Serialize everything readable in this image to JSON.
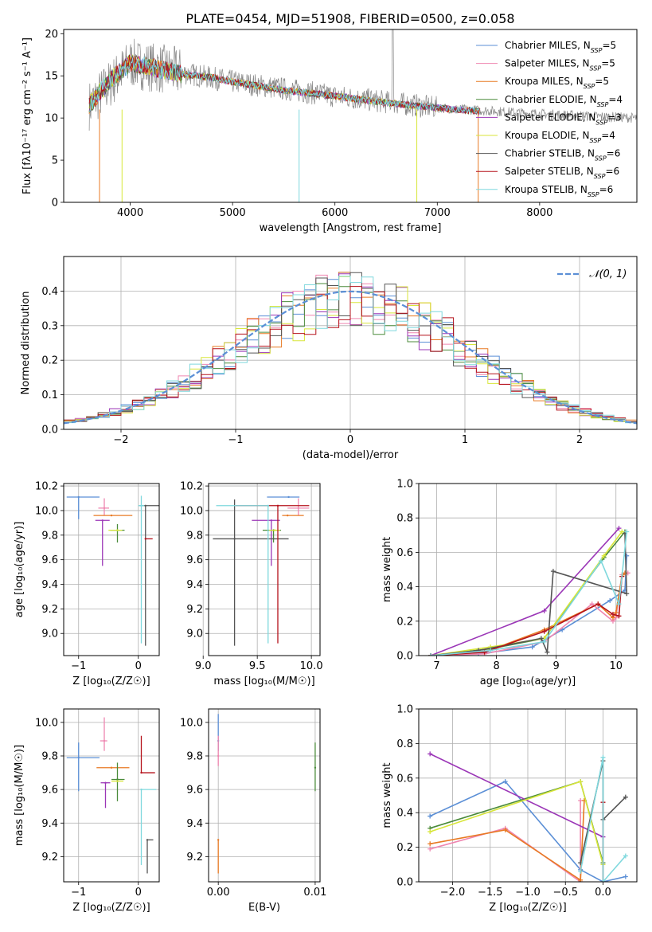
{
  "title": "PLATE=0454, MJD=51908, FIBERID=0500, z=0.058",
  "colors": [
    "#5b8fd6",
    "#ef86b0",
    "#e87a24",
    "#4b8b3b",
    "#9b36b7",
    "#d8e63a",
    "#555555",
    "#b5121b",
    "#7fd8dd"
  ],
  "chart_data": [
    {
      "id": "spectrum",
      "type": "line",
      "xlabel": "wavelength [Angstrom, rest frame]",
      "ylabel": "Flux [fλ10⁻¹⁷ erg cm⁻² s⁻¹ A⁻¹]",
      "xlim": [
        3350,
        8950
      ],
      "ylim": [
        0,
        20.5
      ],
      "xticks": [
        4000,
        5000,
        6000,
        7000,
        8000
      ],
      "yticks": [
        0,
        5,
        10,
        15,
        20
      ],
      "legend_loc": "upper right",
      "series": [
        {
          "name": "Chabrier MILES, N_SSP=5"
        },
        {
          "name": "Salpeter MILES, N_SSP=5"
        },
        {
          "name": "Kroupa MILES, N_SSP=5"
        },
        {
          "name": "Chabrier ELODIE, N_SSP=4"
        },
        {
          "name": "Salpeter ELODIE, N_SSP=3"
        },
        {
          "name": "Kroupa ELODIE, N_SSP=4"
        },
        {
          "name": "Chabrier STELIB, N_SSP=6"
        },
        {
          "name": "Salpeter STELIB, N_SSP=6"
        },
        {
          "name": "Kroupa STELIB, N_SSP=6"
        }
      ],
      "continuum": {
        "x": [
          3600,
          3800,
          4000,
          4200,
          4500,
          4800,
          5000,
          5500,
          6000,
          6500,
          7000,
          7400
        ],
        "y": [
          11.5,
          14.5,
          16.5,
          16.0,
          15.2,
          14.8,
          14.3,
          13.3,
          12.6,
          11.8,
          11.2,
          10.8
        ]
      },
      "data_continuum": {
        "x": [
          3600,
          4000,
          5000,
          6000,
          7000,
          8000,
          8950
        ],
        "y": [
          11.5,
          16.5,
          14.3,
          12.6,
          11.2,
          10.5,
          10.0
        ]
      }
    },
    {
      "id": "residuals",
      "type": "histogram",
      "xlabel": "(data-model)/error",
      "ylabel": "Normed distribution",
      "xlim": [
        -2.5,
        2.5
      ],
      "ylim": [
        0,
        0.5
      ],
      "xticks": [
        -2,
        -1,
        0,
        1,
        2
      ],
      "yticks": [
        0.0,
        0.1,
        0.2,
        0.3,
        0.4
      ],
      "legend": "𝒩(0, 1)",
      "reference": {
        "name": "N(0,1)",
        "mean": 0,
        "sd": 1
      }
    },
    {
      "id": "age-vs-Z",
      "type": "scatter",
      "xlabel": "Z [log₁₀(Z/Z☉)]",
      "ylabel": "age  [log₁₀(age/yr)]",
      "xlim": [
        -1.25,
        0.35
      ],
      "ylim": [
        8.82,
        10.22
      ],
      "xticks": [
        -1,
        0
      ],
      "yticks": [
        9.0,
        9.2,
        9.4,
        9.6,
        9.8,
        10.0,
        10.2
      ],
      "points": [
        {
          "x": -1.0,
          "y": 10.11,
          "xerr": [
            0.2,
            0.35
          ],
          "yerr": [
            0.18,
            0.0
          ]
        },
        {
          "x": -0.57,
          "y": 10.02,
          "xerr": [
            0.1,
            0.08
          ],
          "yerr": [
            0.06,
            0.08
          ]
        },
        {
          "x": -0.45,
          "y": 9.96,
          "xerr": [
            0.3,
            0.35
          ],
          "yerr": [
            0.0,
            0.0
          ]
        },
        {
          "x": -0.35,
          "y": 9.84,
          "xerr": [
            0.12,
            0.12
          ],
          "yerr": [
            0.1,
            0.05
          ]
        },
        {
          "x": -0.6,
          "y": 9.92,
          "xerr": [
            0.12,
            0.12
          ],
          "yerr": [
            0.37,
            0.0
          ]
        },
        {
          "x": -0.35,
          "y": 9.84,
          "xerr": [
            0.15,
            0.08
          ],
          "yerr": [
            0.0,
            0.0
          ]
        },
        {
          "x": 0.12,
          "y": 10.04,
          "xerr": [
            0.1,
            0.25
          ],
          "yerr": [
            1.14,
            0.0
          ]
        },
        {
          "x": 0.12,
          "y": 9.77,
          "xerr": [
            0.0,
            0.12
          ],
          "yerr": [
            0.0,
            0.0
          ]
        },
        {
          "x": 0.05,
          "y": 10.04,
          "xerr": [
            0.05,
            0.05
          ],
          "yerr": [
            1.12,
            0.08
          ]
        }
      ]
    },
    {
      "id": "age-vs-mass",
      "type": "scatter",
      "xlabel": "mass [log₁₀(M/M☉)]",
      "ylabel": "",
      "xlim": [
        9.05,
        10.08
      ],
      "ylim": [
        8.82,
        10.22
      ],
      "xticks": [
        9.0,
        9.5,
        10.0
      ],
      "yticks": [
        9.0,
        9.2,
        9.4,
        9.6,
        9.8,
        10.0,
        10.2
      ],
      "points": [
        {
          "x": 9.79,
          "y": 10.11,
          "xerr": [
            0.2,
            0.1
          ],
          "yerr": [
            0.0,
            0.0
          ]
        },
        {
          "x": 9.88,
          "y": 10.02,
          "xerr": [
            0.1,
            0.1
          ],
          "yerr": [
            0.06,
            0.08
          ]
        },
        {
          "x": 9.78,
          "y": 9.96,
          "xerr": [
            0.05,
            0.15
          ],
          "yerr": [
            0.0,
            0.0
          ]
        },
        {
          "x": 9.65,
          "y": 9.84,
          "xerr": [
            0.1,
            0.07
          ],
          "yerr": [
            0.1,
            0.0
          ]
        },
        {
          "x": 9.63,
          "y": 9.92,
          "xerr": [
            0.18,
            0.08
          ],
          "yerr": [
            0.37,
            0.0
          ]
        },
        {
          "x": 9.66,
          "y": 9.84,
          "xerr": [
            0.05,
            0.05
          ],
          "yerr": [
            0.0,
            0.0
          ]
        },
        {
          "x": 9.29,
          "y": 9.77,
          "xerr": [
            0.2,
            0.5
          ],
          "yerr": [
            0.87,
            0.32
          ]
        },
        {
          "x": 9.69,
          "y": 10.04,
          "xerr": [
            0.39,
            0.29
          ],
          "yerr": [
            1.12,
            0.0
          ]
        },
        {
          "x": 9.6,
          "y": 10.04,
          "xerr": [
            0.48,
            0.0
          ],
          "yerr": [
            1.12,
            0.0
          ]
        }
      ]
    },
    {
      "id": "mass-weight-vs-age",
      "type": "line",
      "xlabel": "age  [log₁₀(age/yr)]",
      "ylabel": "mass weight",
      "xlim": [
        6.7,
        10.35
      ],
      "ylim": [
        0,
        1.0
      ],
      "xticks": [
        7,
        8,
        9,
        10
      ],
      "yticks": [
        0.0,
        0.2,
        0.4,
        0.6,
        0.8,
        1.0
      ],
      "series": [
        {
          "x": [
            6.9,
            7.7,
            8.6,
            9.1,
            9.9,
            10.15,
            10.18
          ],
          "y": [
            0.0,
            0.01,
            0.05,
            0.15,
            0.32,
            0.38,
            0.58
          ]
        },
        {
          "x": [
            6.9,
            7.8,
            8.8,
            9.6,
            9.95,
            10.0,
            10.1,
            10.2
          ],
          "y": [
            0.0,
            0.01,
            0.08,
            0.3,
            0.2,
            0.22,
            0.47,
            0.48
          ]
        },
        {
          "x": [
            6.9,
            7.8,
            8.8,
            9.7,
            9.95,
            10.0,
            10.1,
            10.15
          ],
          "y": [
            0.0,
            0.02,
            0.15,
            0.3,
            0.22,
            0.25,
            0.46,
            0.48
          ]
        },
        {
          "x": [
            6.9,
            7.9,
            8.8,
            9.8,
            10.15
          ],
          "y": [
            0.0,
            0.04,
            0.1,
            0.57,
            0.72
          ]
        },
        {
          "x": [
            6.9,
            8.8,
            10.05
          ],
          "y": [
            0.0,
            0.26,
            0.74
          ]
        },
        {
          "x": [
            6.9,
            7.9,
            8.8,
            9.8,
            10.1
          ],
          "y": [
            0.0,
            0.05,
            0.1,
            0.58,
            0.72
          ]
        },
        {
          "x": [
            6.9,
            7.7,
            8.75,
            8.85,
            8.95,
            10.18,
            10.15
          ],
          "y": [
            0.0,
            0.03,
            0.1,
            0.02,
            0.49,
            0.36,
            0.71
          ]
        },
        {
          "x": [
            6.9,
            7.8,
            8.8,
            9.7,
            9.95,
            10.05,
            10.1
          ],
          "y": [
            0.0,
            0.02,
            0.14,
            0.3,
            0.24,
            0.23,
            0.46
          ]
        },
        {
          "x": [
            6.9,
            7.9,
            8.8,
            9.75,
            10.05,
            10.18
          ],
          "y": [
            0.0,
            0.03,
            0.08,
            0.55,
            0.3,
            0.72
          ]
        }
      ]
    },
    {
      "id": "mass-vs-Z",
      "type": "scatter",
      "xlabel": "Z [log₁₀(Z/Z☉)]",
      "ylabel": "mass [log₁₀(M/M☉)]",
      "xlim": [
        -1.25,
        0.35
      ],
      "ylim": [
        9.05,
        10.08
      ],
      "xticks": [
        -1,
        0
      ],
      "yticks": [
        9.2,
        9.4,
        9.6,
        9.8,
        10.0
      ],
      "points": [
        {
          "x": -1.0,
          "y": 9.79,
          "xerr": [
            0.2,
            0.35
          ],
          "yerr": [
            0.2,
            0.09
          ]
        },
        {
          "x": -0.57,
          "y": 9.89,
          "xerr": [
            0.07,
            0.05
          ],
          "yerr": [
            0.06,
            0.14
          ]
        },
        {
          "x": -0.45,
          "y": 9.73,
          "xerr": [
            0.25,
            0.3
          ],
          "yerr": [
            0.0,
            0.0
          ]
        },
        {
          "x": -0.35,
          "y": 9.66,
          "xerr": [
            0.1,
            0.12
          ],
          "yerr": [
            0.13,
            0.1
          ]
        },
        {
          "x": -0.55,
          "y": 9.64,
          "xerr": [
            0.08,
            0.08
          ],
          "yerr": [
            0.15,
            0.0
          ]
        },
        {
          "x": -0.35,
          "y": 9.65,
          "xerr": [
            0.1,
            0.1
          ],
          "yerr": [
            0.0,
            0.0
          ]
        },
        {
          "x": 0.15,
          "y": 9.3,
          "xerr": [
            0.0,
            0.1
          ],
          "yerr": [
            0.2,
            0.0
          ]
        },
        {
          "x": 0.05,
          "y": 9.7,
          "xerr": [
            0.0,
            0.23
          ],
          "yerr": [
            0.0,
            0.22
          ]
        },
        {
          "x": 0.05,
          "y": 9.6,
          "xerr": [
            0.0,
            0.25
          ],
          "yerr": [
            0.45,
            0.0
          ]
        }
      ]
    },
    {
      "id": "mass-vs-ebv",
      "type": "scatter",
      "xlabel": "E(B-V)",
      "ylabel": "",
      "xlim": [
        -0.001,
        0.0105
      ],
      "ylim": [
        9.05,
        10.08
      ],
      "xticks": [
        0.0,
        0.01
      ],
      "yticks": [
        9.2,
        9.4,
        9.6,
        9.8,
        10.0
      ],
      "points": [
        {
          "x": 0.0,
          "y": 9.89,
          "xerr": [
            0,
            0
          ],
          "yerr": [
            0.06,
            0.16
          ]
        },
        {
          "x": 0.0,
          "y": 9.8,
          "xerr": [
            0,
            0
          ],
          "yerr": [
            0.06,
            0.12
          ]
        },
        {
          "x": 0.0,
          "y": 9.3,
          "xerr": [
            0,
            0
          ],
          "yerr": [
            0.2,
            0.0
          ]
        },
        {
          "x": 0.01,
          "y": 9.73,
          "xerr": [
            0,
            0
          ],
          "yerr": [
            0.14,
            0.15
          ]
        }
      ]
    },
    {
      "id": "mass-weight-vs-Z",
      "type": "line",
      "xlabel": "Z [log₁₀(Z/Z☉)]",
      "ylabel": "mass weight",
      "xlim": [
        -2.45,
        0.45
      ],
      "ylim": [
        0,
        1.0
      ],
      "xticks": [
        -2.0,
        -1.5,
        -1.0,
        -0.5,
        0.0
      ],
      "yticks": [
        0.0,
        0.2,
        0.4,
        0.6,
        0.8,
        1.0
      ],
      "series": [
        {
          "x": [
            -2.3,
            -1.3,
            -0.3,
            0.0,
            0.3
          ],
          "y": [
            0.38,
            0.58,
            0.07,
            0.0,
            0.03
          ]
        },
        {
          "x": [
            -2.3,
            -1.3,
            -0.3,
            -0.3
          ],
          "y": [
            0.19,
            0.31,
            0.0,
            0.47
          ]
        },
        {
          "x": [
            -2.3,
            -1.3,
            -0.3,
            -0.25,
            -0.3
          ],
          "y": [
            0.22,
            0.3,
            0.01,
            0.47,
            0.0
          ]
        },
        {
          "x": [
            -2.3,
            -0.3,
            0.0
          ],
          "y": [
            0.31,
            0.58,
            0.11
          ]
        },
        {
          "x": [
            -2.3,
            0.0
          ],
          "y": [
            0.74,
            0.26
          ]
        },
        {
          "x": [
            -2.3,
            -0.3,
            0.0
          ],
          "y": [
            0.29,
            0.58,
            0.1
          ]
        },
        {
          "x": [
            -0.3,
            0.0,
            0.0,
            0.3
          ],
          "y": [
            0.11,
            0.7,
            0.36,
            0.49
          ]
        },
        {
          "x": [
            0.0,
            0.0
          ],
          "y": [
            0.46,
            0.0
          ]
        },
        {
          "x": [
            -0.3,
            0.0,
            0.0,
            0.3
          ],
          "y": [
            0.06,
            0.72,
            0.0,
            0.15
          ]
        }
      ]
    }
  ]
}
